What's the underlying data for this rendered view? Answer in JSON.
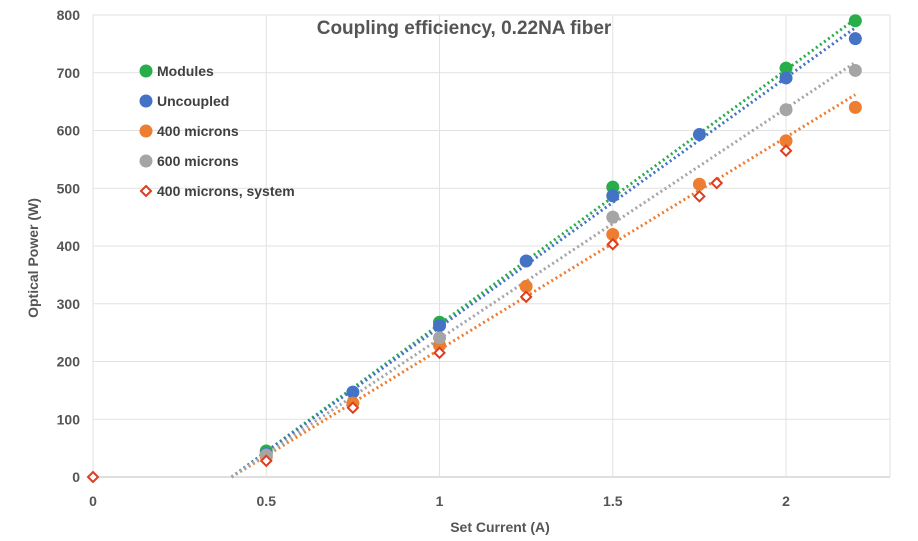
{
  "chart_data": {
    "type": "scatter",
    "title": "Coupling efficiency, 0.22NA fiber",
    "xlabel": "Set Current (A)",
    "ylabel": "Optical Power (W)",
    "xlim": [
      0,
      2.3
    ],
    "ylim": [
      0,
      800
    ],
    "x_ticks": [
      "0",
      "0.5",
      "1",
      "1.5",
      "2"
    ],
    "x_tick_values": [
      0,
      0.5,
      1,
      1.5,
      2
    ],
    "y_ticks": [
      "0",
      "100",
      "200",
      "300",
      "400",
      "500",
      "600",
      "700",
      "800"
    ],
    "y_tick_values": [
      0,
      100,
      200,
      300,
      400,
      500,
      600,
      700,
      800
    ],
    "grid": true,
    "legend_position": "top-left",
    "trendlines": "linear, dotted",
    "series": [
      {
        "name": "Modules",
        "color": "#27ae4a",
        "marker": "circle",
        "points": [
          [
            0.5,
            45
          ],
          [
            1,
            268
          ],
          [
            1.5,
            502
          ],
          [
            2,
            708
          ],
          [
            2.2,
            790
          ]
        ],
        "trendline": [
          [
            0.4,
            0
          ],
          [
            2.2,
            793
          ]
        ]
      },
      {
        "name": "Uncoupled",
        "color": "#4472c4",
        "marker": "circle",
        "points": [
          [
            0.5,
            40
          ],
          [
            0.75,
            147
          ],
          [
            1,
            262
          ],
          [
            1.25,
            374
          ],
          [
            1.5,
            487
          ],
          [
            1.75,
            593
          ],
          [
            2,
            691
          ],
          [
            2.2,
            759
          ]
        ],
        "trendline": [
          [
            0.4,
            0
          ],
          [
            2.2,
            778
          ]
        ]
      },
      {
        "name": "400 microns",
        "color": "#ed7d31",
        "marker": "circle",
        "points": [
          [
            0.5,
            35
          ],
          [
            0.75,
            128
          ],
          [
            1,
            228
          ],
          [
            1.25,
            330
          ],
          [
            1.5,
            420
          ],
          [
            1.75,
            507
          ],
          [
            2,
            582
          ],
          [
            2.2,
            640
          ]
        ],
        "trendline": [
          [
            0.4,
            0
          ],
          [
            2.2,
            662
          ]
        ]
      },
      {
        "name": "600 microns",
        "color": "#a5a5a5",
        "marker": "circle",
        "points": [
          [
            0.5,
            38
          ],
          [
            1,
            241
          ],
          [
            1.5,
            450
          ],
          [
            2,
            636
          ],
          [
            2.2,
            704
          ]
        ],
        "trendline": [
          [
            0.4,
            0
          ],
          [
            2.2,
            718
          ]
        ]
      },
      {
        "name": "400 microns, system",
        "color": "#e03c1e",
        "marker": "diamond-open",
        "points": [
          [
            0,
            0
          ],
          [
            0.5,
            28
          ],
          [
            0.75,
            120
          ],
          [
            1,
            215
          ],
          [
            1.25,
            312
          ],
          [
            1.5,
            403
          ],
          [
            1.75,
            486
          ],
          [
            1.8,
            509
          ],
          [
            2,
            565
          ]
        ]
      }
    ]
  }
}
